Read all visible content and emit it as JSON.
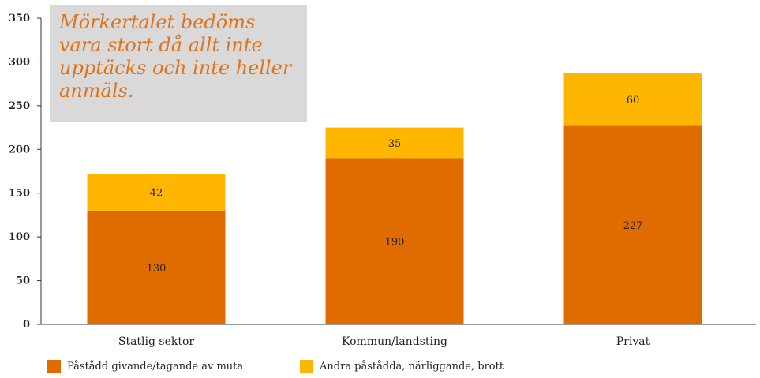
{
  "annotation": {
    "lines": [
      "Mörkertalet bedöms",
      "vara stort då allt inte",
      "upptäcks och inte heller",
      "anmäls."
    ]
  },
  "colors": {
    "series1": "#e06c00",
    "series2": "#ffb600",
    "axis": "#333333",
    "annotation_bg": "#d9d9d9",
    "annotation_text": "#e0731a"
  },
  "chart_data": {
    "type": "bar",
    "stacked": true,
    "categories": [
      "Statlig sektor",
      "Kommun/landsting",
      "Privat"
    ],
    "series": [
      {
        "name": "Påstådd givande/tagande av muta",
        "values": [
          130,
          190,
          227
        ]
      },
      {
        "name": "Andra påstådda, närliggande,  brott",
        "values": [
          42,
          35,
          60
        ]
      }
    ],
    "ylim": [
      0,
      350
    ],
    "yticks": [
      0,
      50,
      100,
      150,
      200,
      250,
      300,
      350
    ],
    "grid": false,
    "legend_position": "bottom"
  }
}
